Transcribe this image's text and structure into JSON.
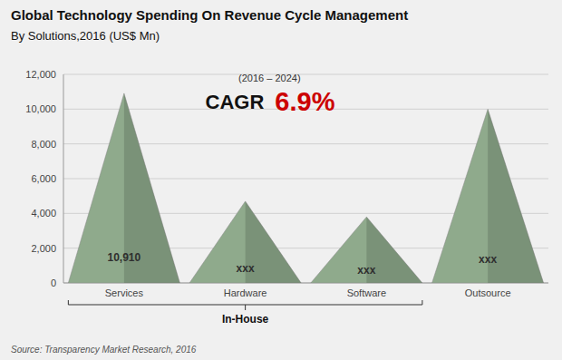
{
  "chart_data": {
    "type": "bar",
    "title": "Global Technology Spending On Revenue Cycle Management",
    "subtitle": "By Solutions,2016 (US$ Mn)",
    "categories": [
      "Services",
      "Hardware",
      "Software",
      "Outsource"
    ],
    "values": [
      10910,
      4700,
      3800,
      10000
    ],
    "value_labels": [
      "10,910",
      "xxx",
      "xxx",
      "xxx"
    ],
    "data_labels": true,
    "color": "#8faa8c",
    "ylim": [
      0,
      12000
    ],
    "yticks": [
      0,
      {
        "value": 2000,
        "label": "2,000"
      },
      {
        "value": 4000,
        "label": "4,000"
      },
      {
        "value": 6000,
        "label": "6,000"
      },
      {
        "value": 8000,
        "label": "8,000"
      },
      {
        "value": 10000,
        "label": "10,000"
      },
      {
        "value": 12000,
        "label": "12,000"
      }
    ],
    "grid": true,
    "annotations": [
      "(2016 – 2024)",
      "CAGR",
      "6.9%",
      "In-House"
    ],
    "source": "Source: Transparency Market Research, 2016"
  }
}
